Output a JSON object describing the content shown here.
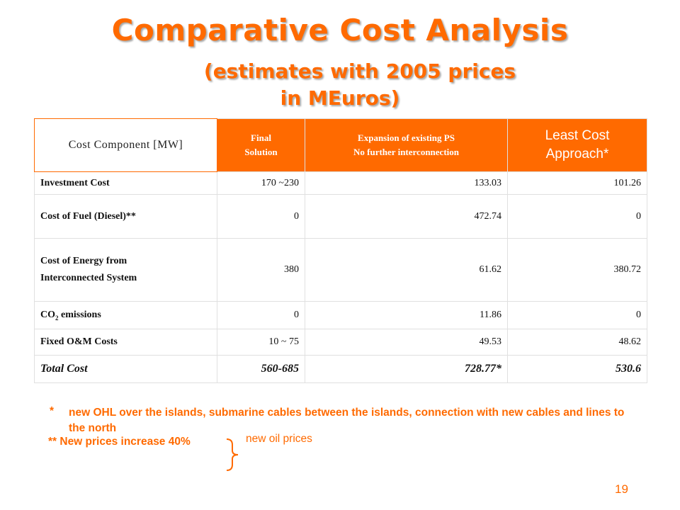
{
  "title": "Comparative Cost Analysis",
  "subtitle_line1": "(estimates with 2005 prices",
  "subtitle_line2": "in MEuros)",
  "table": {
    "headers": {
      "component": "Cost Component [MW]",
      "final_line1": "Final",
      "final_line2": "Solution",
      "expansion_line1": "Expansion of existing PS",
      "expansion_line2": "No further interconnection",
      "least_line1": "Least Cost",
      "least_line2": "Approach*"
    },
    "rows": [
      {
        "label": "Investment Cost",
        "final": "170 ~230",
        "expansion": "133.03",
        "least": "101.26"
      },
      {
        "label": "Cost of Fuel (Diesel)**",
        "final": "0",
        "expansion": "472.74",
        "least": "0"
      },
      {
        "label_line1": "Cost of Energy from",
        "label_line2": "Interconnected System",
        "final": "380",
        "expansion": "61.62",
        "least": "380.72"
      },
      {
        "label_co": "CO",
        "label_sub": "2",
        "label_rest": " emissions",
        "final": "0",
        "expansion": "11.86",
        "least": "0"
      },
      {
        "label": "Fixed O&M Costs",
        "final": "10 ~ 75",
        "expansion": "49.53",
        "least": "48.62"
      },
      {
        "label": "Total Cost",
        "final": "560-685",
        "expansion": "728.77*",
        "least": "530.6"
      }
    ]
  },
  "notes": {
    "note1_mark": "*",
    "note1_text": "new OHL over the islands, submarine cables between the islands, connection with new cables and lines to the north",
    "note2": "**   New prices increase 40%",
    "brace_label": "new oil prices"
  },
  "page_number": "19",
  "colors": {
    "accent": "#ff6a00",
    "text": "#111111",
    "grid": "#e0e0e0"
  }
}
